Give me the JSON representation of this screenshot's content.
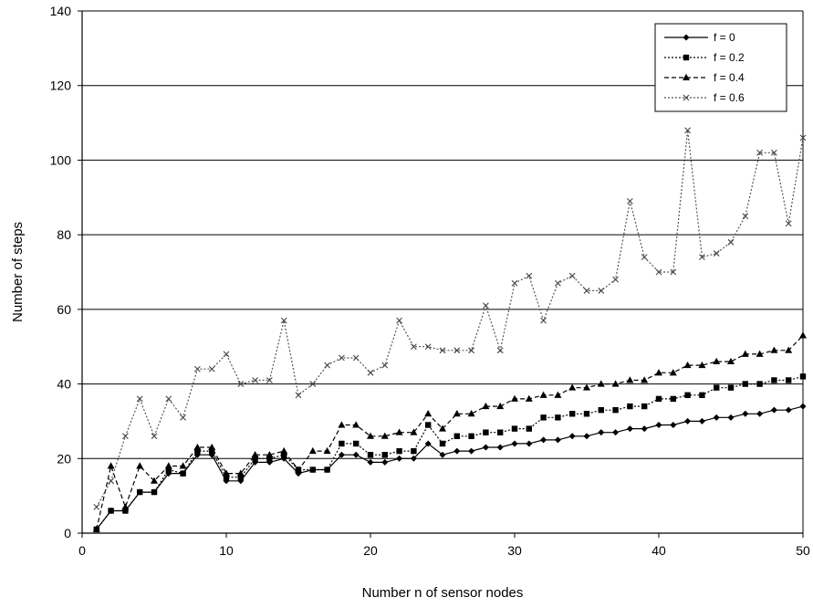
{
  "chart_data": {
    "type": "line",
    "title": "",
    "xlabel": "Number n of sensor nodes",
    "ylabel": "Number of steps",
    "xlim": [
      0,
      50
    ],
    "ylim": [
      0,
      140
    ],
    "x_ticks": [
      0,
      10,
      20,
      30,
      40,
      50
    ],
    "y_ticks": [
      0,
      20,
      40,
      60,
      80,
      100,
      120,
      140
    ],
    "grid": "horizontal",
    "legend_position": "top-right",
    "x": [
      1,
      2,
      3,
      4,
      5,
      6,
      7,
      8,
      9,
      10,
      11,
      12,
      13,
      14,
      15,
      16,
      17,
      18,
      19,
      20,
      21,
      22,
      23,
      24,
      25,
      26,
      27,
      28,
      29,
      30,
      31,
      32,
      33,
      34,
      35,
      36,
      37,
      38,
      39,
      40,
      41,
      42,
      43,
      44,
      45,
      46,
      47,
      48,
      49,
      50
    ],
    "series": [
      {
        "name": "f = 0",
        "marker": "diamond",
        "dash": "solid",
        "values": [
          1,
          6,
          6,
          11,
          11,
          16,
          16,
          21,
          21,
          14,
          14,
          19,
          19,
          20,
          16,
          17,
          17,
          21,
          21,
          19,
          19,
          20,
          20,
          24,
          21,
          22,
          22,
          23,
          23,
          24,
          24,
          25,
          25,
          26,
          26,
          27,
          27,
          28,
          28,
          29,
          29,
          30,
          30,
          31,
          31,
          32,
          32,
          33,
          33,
          34
        ]
      },
      {
        "name": "f = 0.2",
        "marker": "square",
        "dash": "dotted",
        "values": [
          1,
          6,
          6,
          11,
          11,
          17,
          16,
          22,
          22,
          15,
          15,
          20,
          20,
          21,
          17,
          17,
          17,
          24,
          24,
          21,
          21,
          22,
          22,
          29,
          24,
          26,
          26,
          27,
          27,
          28,
          28,
          31,
          31,
          32,
          32,
          33,
          33,
          34,
          34,
          36,
          36,
          37,
          37,
          39,
          39,
          40,
          40,
          41,
          41,
          42
        ]
      },
      {
        "name": "f = 0.4",
        "marker": "triangle",
        "dash": "dashed",
        "values": [
          1,
          18,
          7,
          18,
          14,
          18,
          18,
          23,
          23,
          16,
          16,
          21,
          21,
          22,
          17,
          22,
          22,
          29,
          29,
          26,
          26,
          27,
          27,
          32,
          28,
          32,
          32,
          34,
          34,
          36,
          36,
          37,
          37,
          39,
          39,
          40,
          40,
          41,
          41,
          43,
          43,
          45,
          45,
          46,
          46,
          48,
          48,
          49,
          49,
          53
        ]
      },
      {
        "name": "f = 0.6",
        "marker": "x",
        "dash": "dotted",
        "values": [
          7,
          14,
          26,
          36,
          26,
          36,
          31,
          44,
          44,
          48,
          40,
          41,
          41,
          57,
          37,
          40,
          45,
          47,
          47,
          43,
          45,
          57,
          50,
          50,
          49,
          49,
          49,
          61,
          49,
          67,
          69,
          57,
          67,
          69,
          65,
          65,
          68,
          89,
          74,
          70,
          70,
          108,
          74,
          75,
          78,
          85,
          102,
          102,
          83,
          106
        ]
      }
    ]
  }
}
